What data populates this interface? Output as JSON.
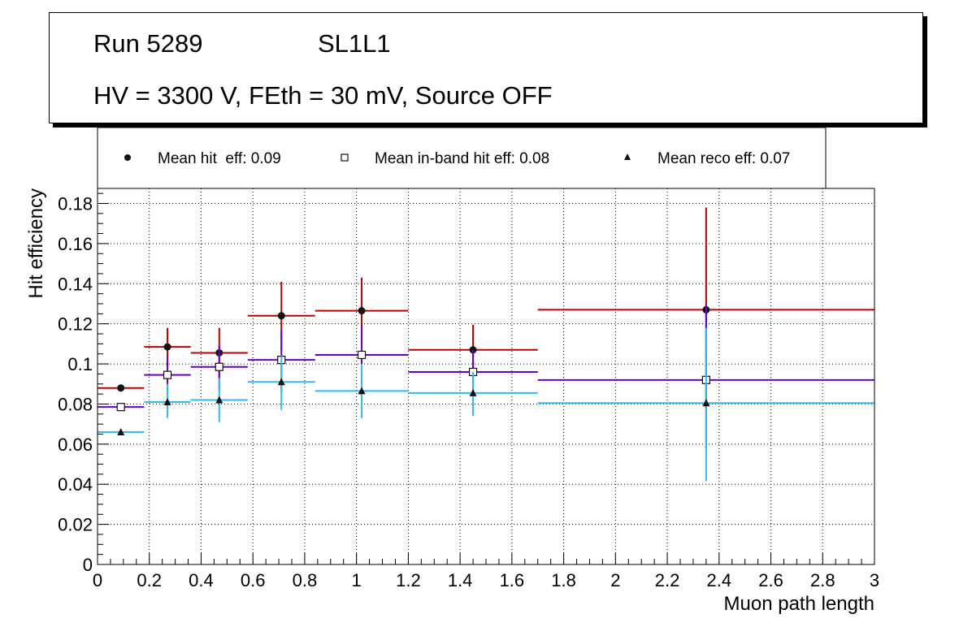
{
  "header": {
    "run": "Run 5289",
    "layer": "SL1L1",
    "conditions": "HV = 3300 V, FEth = 30 mV, Source OFF"
  },
  "chart_data": {
    "type": "scatter",
    "title": "Run 5289 SL1L1 — HV = 3300 V, FEth = 30 mV, Source OFF",
    "xlabel": "Muon path length",
    "ylabel": "Hit efficiency",
    "xlim": [
      0,
      3
    ],
    "ylim": [
      0,
      0.1875
    ],
    "grid": true,
    "legend_position": "top",
    "x_ticks": [
      "0",
      "0.2",
      "0.4",
      "0.6",
      "0.8",
      "1",
      "1.2",
      "1.4",
      "1.6",
      "1.8",
      "2",
      "2.2",
      "2.4",
      "2.6",
      "2.8",
      "3"
    ],
    "x_tick_values": [
      0,
      0.2,
      0.4,
      0.6,
      0.8,
      1.0,
      1.2,
      1.4,
      1.6,
      1.8,
      2.0,
      2.2,
      2.4,
      2.6,
      2.8,
      3.0
    ],
    "y_ticks": [
      "0",
      "0.02",
      "0.04",
      "0.06",
      "0.08",
      "0.1",
      "0.12",
      "0.14",
      "0.16",
      "0.18"
    ],
    "y_tick_values": [
      0,
      0.02,
      0.04,
      0.06,
      0.08,
      0.1,
      0.12,
      0.14,
      0.16,
      0.18
    ],
    "series": [
      {
        "name": "Mean hit  eff: 0.09",
        "marker": "filled-circle",
        "color": "#c00000",
        "x": [
          0.09,
          0.27,
          0.47,
          0.71,
          1.02,
          1.45,
          2.35
        ],
        "xlow": [
          0.0,
          0.18,
          0.36,
          0.58,
          0.84,
          1.2,
          1.7
        ],
        "xhigh": [
          0.18,
          0.36,
          0.58,
          0.84,
          1.2,
          1.7,
          3.0
        ],
        "y": [
          0.088,
          0.1085,
          0.1055,
          0.124,
          0.1265,
          0.107,
          0.127
        ],
        "ylow": [
          0.088,
          0.099,
          0.093,
          0.107,
          0.111,
          0.095,
          0.077
        ],
        "yhigh": [
          0.088,
          0.118,
          0.118,
          0.141,
          0.143,
          0.1195,
          0.178
        ]
      },
      {
        "name": "Mean in-band hit eff: 0.08",
        "marker": "open-square",
        "color": "#6600cc",
        "x": [
          0.09,
          0.27,
          0.47,
          0.71,
          1.02,
          1.45,
          2.35
        ],
        "xlow": [
          0.0,
          0.18,
          0.36,
          0.58,
          0.84,
          1.2,
          1.7
        ],
        "xhigh": [
          0.18,
          0.36,
          0.58,
          0.84,
          1.2,
          1.7,
          3.0
        ],
        "y": [
          0.0785,
          0.0945,
          0.0985,
          0.102,
          0.1045,
          0.096,
          0.092
        ],
        "ylow": [
          0.0785,
          0.086,
          0.087,
          0.086,
          0.09,
          0.084,
          0.058
        ],
        "yhigh": [
          0.0785,
          0.104,
          0.109,
          0.117,
          0.119,
          0.107,
          0.13
        ]
      },
      {
        "name": "Mean reco eff: 0.07",
        "marker": "filled-triangle",
        "color": "#33bbee",
        "x": [
          0.09,
          0.27,
          0.47,
          0.71,
          1.02,
          1.45,
          2.35
        ],
        "xlow": [
          0.0,
          0.18,
          0.36,
          0.58,
          0.84,
          1.2,
          1.7
        ],
        "xhigh": [
          0.18,
          0.36,
          0.58,
          0.84,
          1.2,
          1.7,
          3.0
        ],
        "y": [
          0.066,
          0.081,
          0.082,
          0.091,
          0.0865,
          0.0855,
          0.0805
        ],
        "ylow": [
          0.066,
          0.073,
          0.071,
          0.077,
          0.073,
          0.074,
          0.0415
        ],
        "yhigh": [
          0.066,
          0.09,
          0.093,
          0.104,
          0.1,
          0.096,
          0.118
        ]
      }
    ]
  }
}
